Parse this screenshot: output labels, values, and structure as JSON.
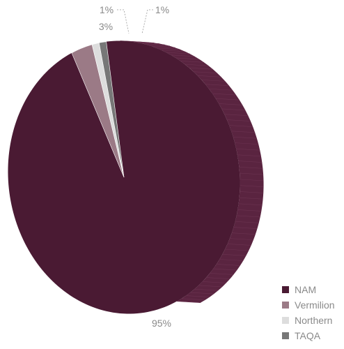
{
  "chart_data": {
    "type": "pie",
    "title": "",
    "categories": [
      "NAM",
      "Vermilion",
      "Northern",
      "TAQA"
    ],
    "values": [
      95,
      3,
      1,
      1
    ],
    "data_labels": [
      "95%",
      "3%",
      "1%",
      "1%"
    ],
    "colors": [
      "#4a1a33",
      "#9b7a86",
      "#dddddd",
      "#777777"
    ],
    "legend": {
      "position": "bottom-right",
      "items": [
        "NAM",
        "Vermilion",
        "Northern",
        "TAQA"
      ]
    },
    "style": "3d"
  }
}
